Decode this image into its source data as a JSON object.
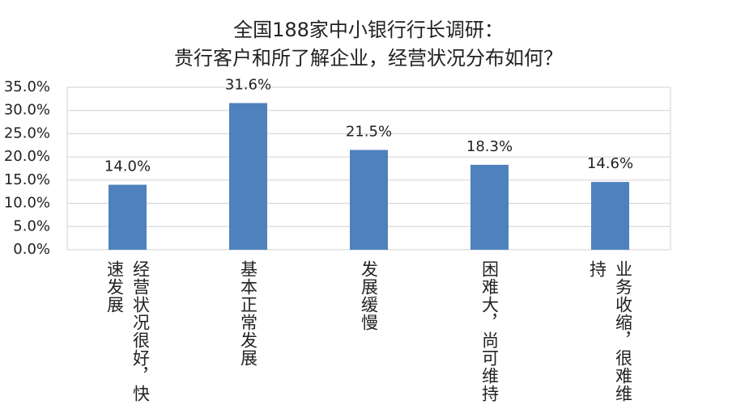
{
  "chart_data": {
    "type": "bar",
    "title": [
      "全国188家中小银行行长调研：",
      "贵行客户和所了解企业，经营状况分布如何？"
    ],
    "categories": [
      "经营状况很好，快速发展",
      "基本正常发展",
      "发展缓慢",
      "困难大，尚可维持",
      "业务收缩，很难维持"
    ],
    "values": [
      14.0,
      31.6,
      21.5,
      18.3,
      14.6
    ],
    "value_labels": [
      "14.0%",
      "31.6%",
      "21.5%",
      "18.3%",
      "14.6%"
    ],
    "color": "#4f81bd",
    "ylim": [
      0,
      35
    ],
    "yticks": [
      {
        "value": 0,
        "label": "0.0%"
      },
      {
        "value": 5,
        "label": "5.0%"
      },
      {
        "value": 10,
        "label": "10.0%"
      },
      {
        "value": 15,
        "label": "15.0%"
      },
      {
        "value": 20,
        "label": "20.0%"
      },
      {
        "value": 25,
        "label": "25.0%"
      },
      {
        "value": 30,
        "label": "30.0%"
      },
      {
        "value": 35,
        "label": "35.0%"
      }
    ],
    "grid": true
  }
}
